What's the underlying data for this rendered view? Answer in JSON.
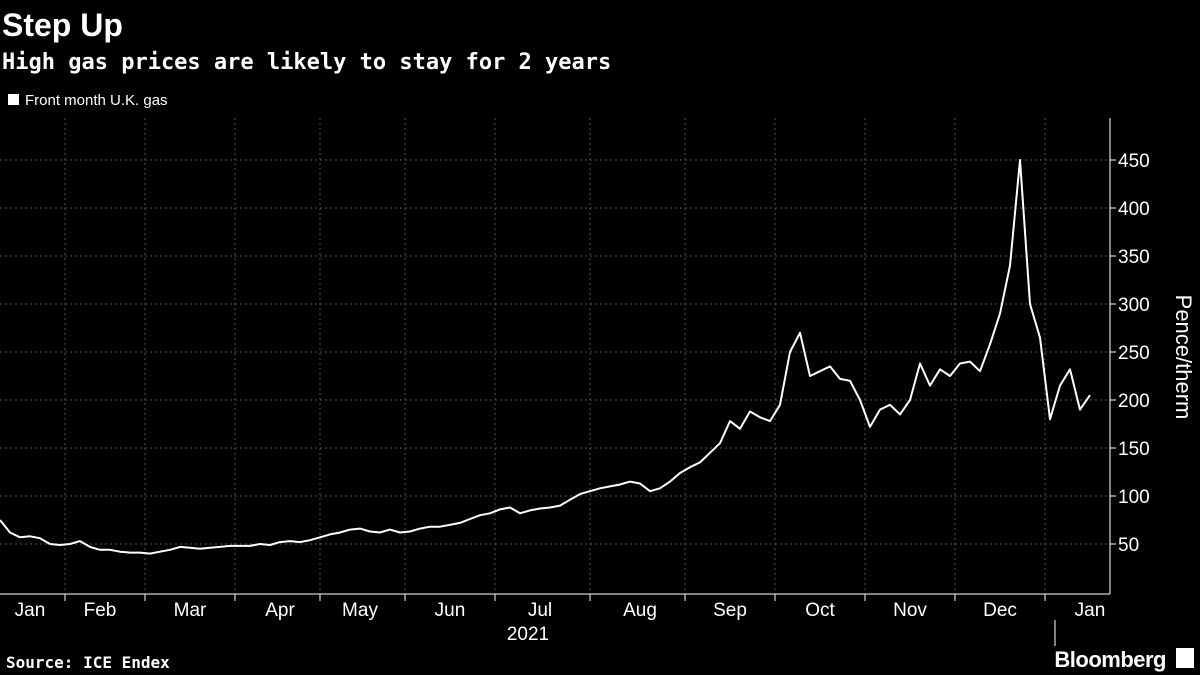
{
  "chart_data": {
    "type": "line",
    "title": "Step Up",
    "subtitle": "High gas prices are likely to stay for 2 years",
    "x_label": "2021",
    "y_label": "Pence/therm",
    "source": "Source: ICE Endex",
    "brand": "Bloomberg",
    "categories": [
      null,
      null,
      null,
      "Jan",
      null,
      null,
      null,
      null,
      null,
      null,
      "Feb",
      null,
      null,
      null,
      null,
      null,
      null,
      null,
      null,
      "Mar",
      null,
      null,
      null,
      null,
      null,
      null,
      null,
      null,
      "Apr",
      null,
      null,
      null,
      null,
      null,
      null,
      null,
      "May",
      null,
      null,
      null,
      null,
      null,
      null,
      null,
      null,
      "Jun",
      null,
      null,
      null,
      null,
      null,
      null,
      null,
      null,
      "Jul",
      null,
      null,
      null,
      null,
      null,
      null,
      null,
      null,
      null,
      "Aug",
      null,
      null,
      null,
      null,
      null,
      null,
      null,
      null,
      "Sep",
      null,
      null,
      null,
      null,
      null,
      null,
      null,
      null,
      "Oct",
      null,
      null,
      null,
      null,
      null,
      null,
      null,
      null,
      "Nov",
      null,
      null,
      null,
      null,
      null,
      null,
      null,
      null,
      "Dec",
      null,
      null,
      null,
      null,
      null,
      null,
      null,
      null,
      "Jan"
    ],
    "series": [
      {
        "name": "Front month U.K. gas",
        "color": "#ffffff",
        "values": [
          75,
          62,
          57,
          58,
          56,
          50,
          49,
          50,
          53,
          47,
          44,
          44,
          42,
          41,
          41,
          40,
          42,
          44,
          47,
          46,
          45,
          46,
          47,
          48,
          48,
          48,
          50,
          49,
          52,
          53,
          52,
          54,
          57,
          60,
          62,
          65,
          66,
          63,
          62,
          65,
          62,
          63,
          66,
          68,
          68,
          70,
          72,
          76,
          80,
          82,
          86,
          88,
          82,
          85,
          87,
          88,
          90,
          96,
          102,
          105,
          108,
          110,
          112,
          115,
          113,
          105,
          108,
          115,
          124,
          130,
          135,
          145,
          155,
          178,
          170,
          188,
          182,
          178,
          195,
          250,
          270,
          225,
          230,
          235,
          222,
          220,
          200,
          172,
          190,
          195,
          185,
          200,
          238,
          215,
          232,
          225,
          238,
          240,
          230,
          258,
          290,
          340,
          450,
          300,
          265,
          180,
          215,
          232,
          190,
          205
        ]
      }
    ],
    "ylim": [
      0,
      500
    ],
    "yticks": [
      50,
      100,
      150,
      200,
      250,
      300,
      350,
      400,
      450
    ],
    "grid": true,
    "legend": "top-left",
    "background": "#000000"
  }
}
